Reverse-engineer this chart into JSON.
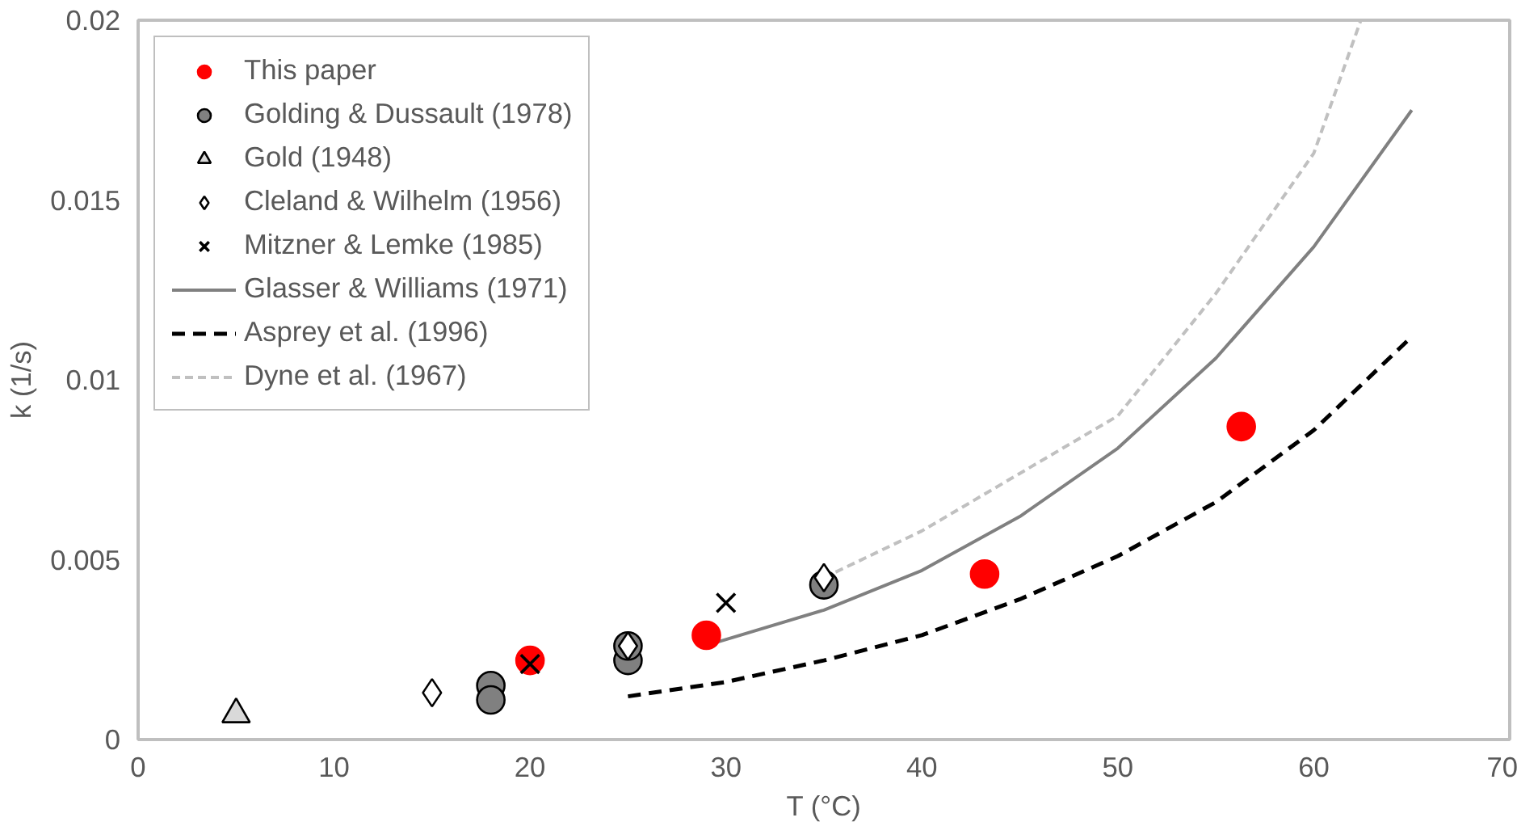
{
  "chart_data": {
    "type": "scatter",
    "xlabel": "T (°C)",
    "ylabel": "k (1/s)",
    "xlim": [
      0,
      70
    ],
    "xticks": [
      0,
      10,
      20,
      30,
      40,
      50,
      60,
      70
    ],
    "ylim": [
      0,
      0.02
    ],
    "yticks": [
      {
        "value": 0,
        "label": "0"
      },
      {
        "value": 0.005,
        "label": "0.005"
      },
      {
        "value": 0.01,
        "label": "0.01"
      },
      {
        "value": 0.015,
        "label": "0.015"
      },
      {
        "value": 0.02,
        "label": "0.02"
      }
    ],
    "grid": false,
    "legend": "top left",
    "series": [
      {
        "name": "This paper",
        "marker": "circle",
        "color": "#ff0000",
        "x": [
          20,
          29,
          43.2,
          56.3
        ],
        "values": [
          0.0022,
          0.0029,
          0.0046,
          0.0087
        ]
      },
      {
        "name": "Golding & Dussault (1978)",
        "marker": "circle",
        "color": "#808080",
        "x": [
          18,
          18,
          25,
          25,
          35
        ],
        "values": [
          0.0015,
          0.0011,
          0.0022,
          0.0026,
          0.0043
        ]
      },
      {
        "name": "Gold (1948)",
        "marker": "triangle",
        "color": "#d9d9d9",
        "x": [
          5
        ],
        "values": [
          0.0007
        ]
      },
      {
        "name": "Cleland & Wilhelm (1956)",
        "marker": "diamond",
        "color": "#ffffff",
        "x": [
          15,
          25,
          35
        ],
        "values": [
          0.0013,
          0.0026,
          0.0045
        ]
      },
      {
        "name": "Mitzner & Lemke (1985)",
        "marker": "cross",
        "color": "#000000",
        "x": [
          20,
          30
        ],
        "values": [
          0.0021,
          0.0038
        ]
      },
      {
        "name": "Glasser & Williams (1971)",
        "type": "line",
        "line_style": "solid",
        "color": "#808080",
        "x": [
          29.5,
          35,
          40,
          45,
          50,
          55,
          60,
          65
        ],
        "values": [
          0.0027,
          0.0036,
          0.0047,
          0.0062,
          0.0081,
          0.0106,
          0.0137,
          0.0175
        ]
      },
      {
        "name": "Asprey et al. (1996)",
        "type": "line",
        "line_style": "dashed",
        "color": "#000000",
        "x": [
          25,
          30,
          35,
          40,
          45,
          50,
          55,
          60,
          65
        ],
        "values": [
          0.0012,
          0.0016,
          0.0022,
          0.0029,
          0.0039,
          0.0051,
          0.0066,
          0.0086,
          0.0112
        ]
      },
      {
        "name": "Dyne et al. (1967)",
        "type": "line",
        "line_style": "dotted",
        "color": "#c0c0c0",
        "x": [
          35,
          40,
          45,
          50,
          55,
          60,
          62.4
        ],
        "values": [
          0.0045,
          0.0058,
          0.0074,
          0.009,
          0.0124,
          0.0163,
          0.02
        ]
      }
    ]
  }
}
